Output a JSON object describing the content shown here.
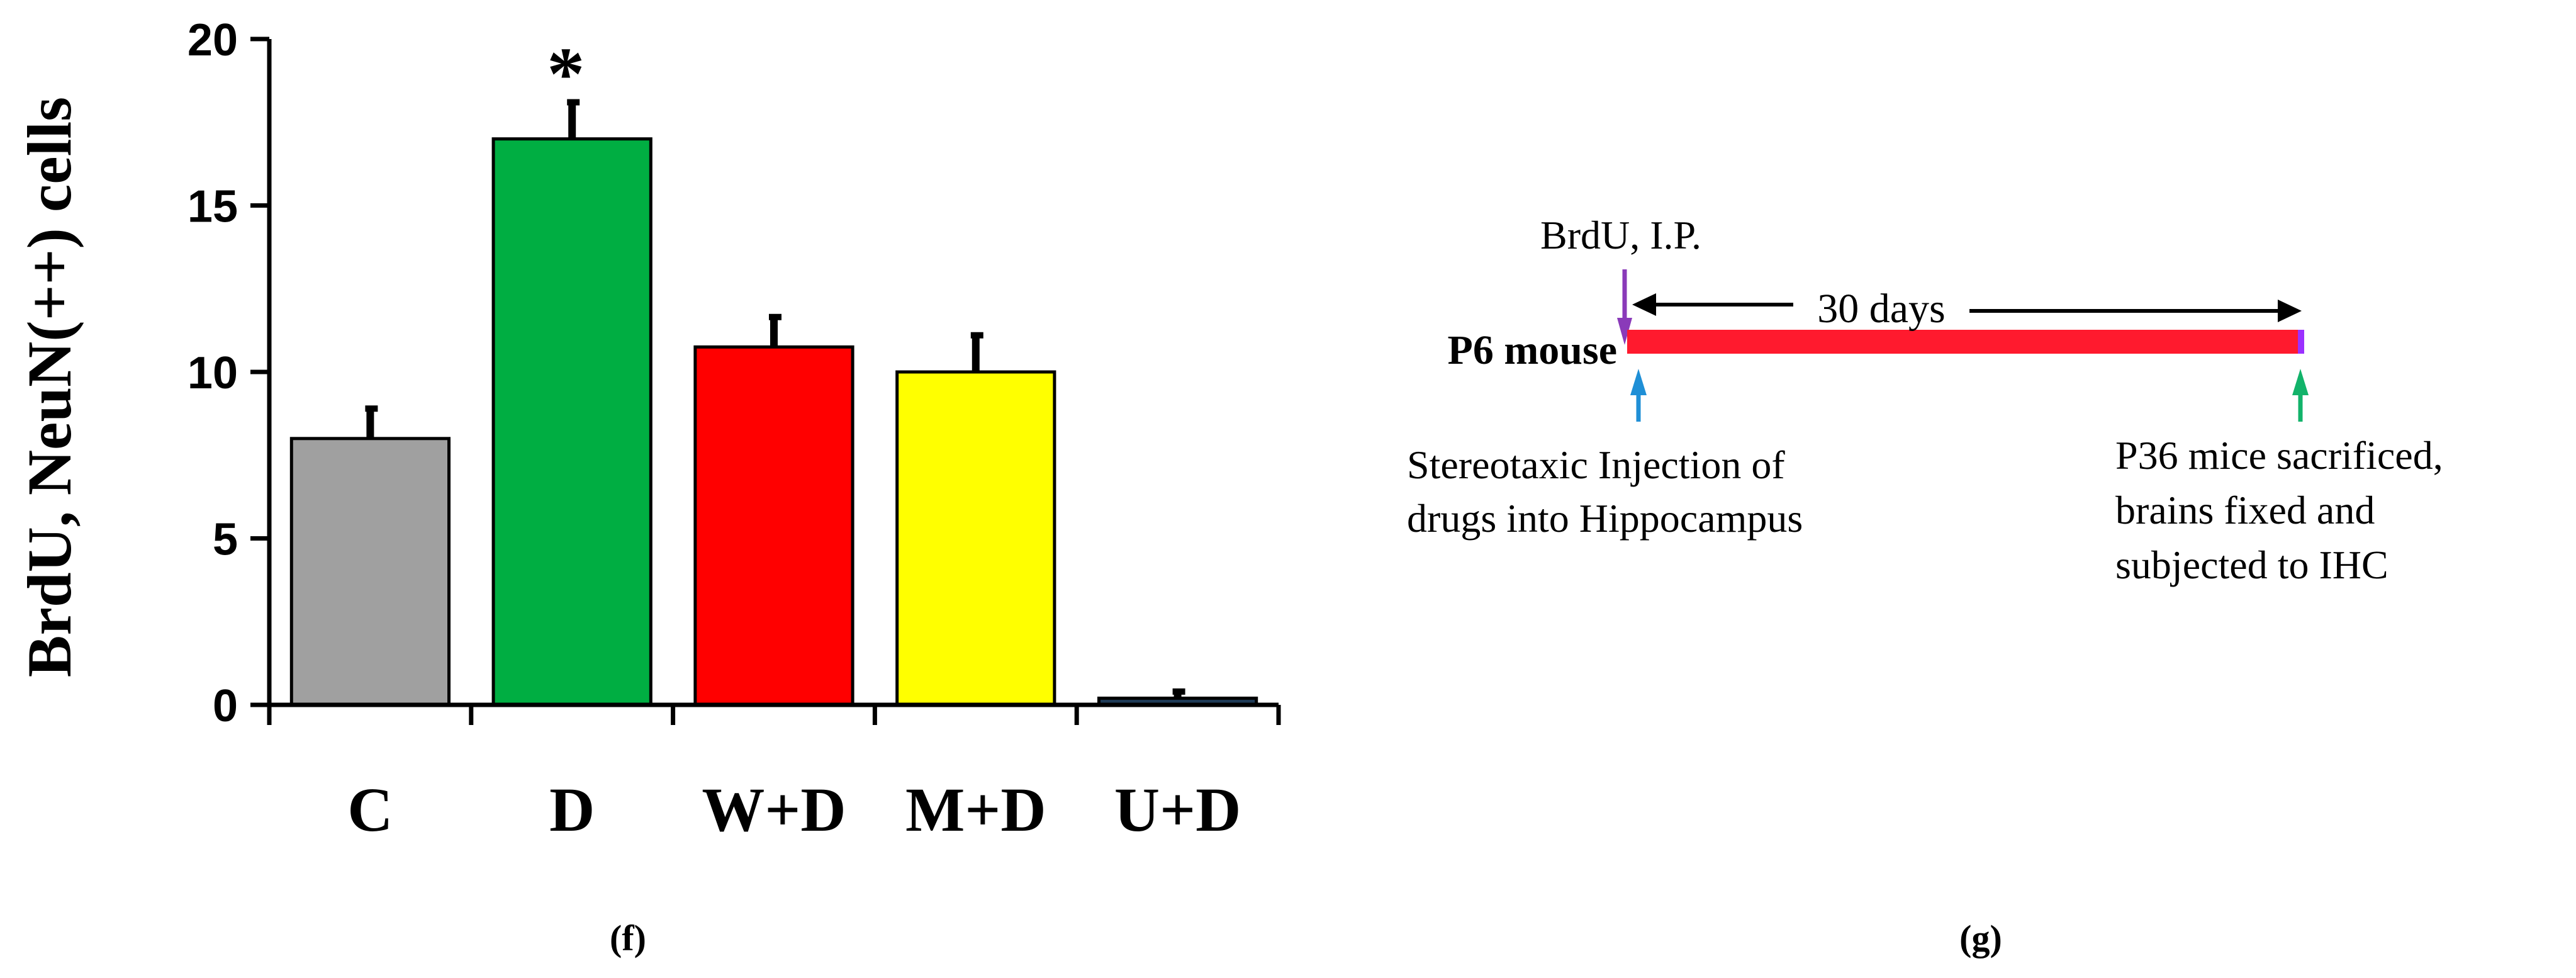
{
  "chart_data": {
    "type": "bar",
    "ylabel": "BrdU, NeuN(++) cells",
    "ylim": [
      0,
      20
    ],
    "yticks": [
      0,
      5,
      10,
      15,
      20
    ],
    "categories": [
      "C",
      "D",
      "W+D",
      "M+D",
      "U+D"
    ],
    "values": [
      8.0,
      17.0,
      10.75,
      10.0,
      0.2
    ],
    "errors": [
      0.9,
      1.1,
      0.9,
      1.1,
      0.2
    ],
    "colors": [
      "#a0a0a0",
      "#00ae42",
      "#ff0000",
      "#ffff00",
      "#1f3b57"
    ],
    "annotations": [
      {
        "category": "D",
        "text": "*"
      }
    ],
    "grid": false,
    "legend": "none"
  },
  "panels": {
    "f": "(f)",
    "g": "(g)"
  },
  "timeline": {
    "start_label": "P6 mouse",
    "top_label": "BrdU, I.P.",
    "duration_label": "30 days",
    "left_caption": [
      "Stereotaxic Injection of",
      "drugs into Hippocampus"
    ],
    "right_caption": [
      "P36 mice sacrificed,",
      "brains fixed and",
      "subjected to IHC"
    ],
    "colors": {
      "bar": "#ff1a2e",
      "bar_end": "#9b30ff",
      "brdu_arrow": "#8a3ab9",
      "injection_arrow": "#1f8fd6",
      "sacrifice_arrow": "#12b36a"
    }
  }
}
